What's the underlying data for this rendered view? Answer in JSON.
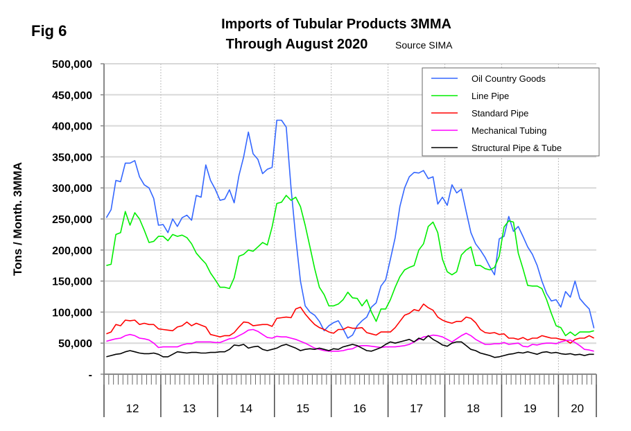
{
  "fig_label": "Fig 6",
  "chart_data": {
    "type": "line",
    "title": "Imports of Tubular Products 3MMA",
    "subtitle": "Through August 2020",
    "source": "Source SIMA",
    "xlabel": "",
    "ylabel": "Tons / Month. 3MMA",
    "ylim": [
      0,
      500000
    ],
    "yticks": [
      0,
      50000,
      100000,
      150000,
      200000,
      250000,
      300000,
      350000,
      400000,
      450000,
      500000
    ],
    "ytick_labels": [
      "-",
      "50,000",
      "100,000",
      "150,000",
      "200,000",
      "250,000",
      "300,000",
      "350,000",
      "400,000",
      "450,000",
      "500,000"
    ],
    "x_start": "2012-01",
    "x_end": "2020-08",
    "x_frequency": "monthly",
    "year_labels": [
      "12",
      "13",
      "14",
      "15",
      "16",
      "17",
      "18",
      "19",
      "20"
    ],
    "grid": {
      "horizontal": true,
      "vertical_year_dotted": true
    },
    "legend_position": "top-right",
    "series": [
      {
        "name": "Oil Country Goods",
        "color": "#3366ff",
        "values": [
          252000,
          265000,
          312000,
          310000,
          340000,
          340000,
          344000,
          318000,
          305000,
          300000,
          283000,
          240000,
          241000,
          228000,
          250000,
          238000,
          252000,
          256000,
          248000,
          288000,
          285000,
          337000,
          312000,
          298000,
          280000,
          282000,
          297000,
          276000,
          320000,
          350000,
          390000,
          355000,
          346000,
          323000,
          330000,
          333000,
          409000,
          409000,
          398000,
          300000,
          220000,
          150000,
          110000,
          100000,
          95000,
          85000,
          70000,
          78000,
          83000,
          86000,
          73000,
          58000,
          63000,
          78000,
          86000,
          92000,
          108000,
          115000,
          142000,
          152000,
          185000,
          220000,
          270000,
          300000,
          318000,
          325000,
          324000,
          328000,
          315000,
          318000,
          274000,
          285000,
          272000,
          305000,
          292000,
          298000,
          262000,
          228000,
          210000,
          200000,
          188000,
          173000,
          160000,
          218000,
          222000,
          254000,
          230000,
          238000,
          222000,
          205000,
          193000,
          175000,
          150000,
          130000,
          118000,
          120000,
          108000,
          133000,
          124000,
          150000,
          122000,
          113000,
          105000,
          74000
        ]
      },
      {
        "name": "Line Pipe",
        "color": "#00ee00",
        "values": [
          175000,
          177000,
          225000,
          228000,
          262000,
          240000,
          260000,
          250000,
          232000,
          212000,
          214000,
          222000,
          222000,
          215000,
          225000,
          222000,
          224000,
          220000,
          210000,
          195000,
          186000,
          178000,
          163000,
          152000,
          140000,
          140000,
          138000,
          155000,
          190000,
          193000,
          200000,
          198000,
          205000,
          212000,
          208000,
          237000,
          275000,
          277000,
          288000,
          280000,
          285000,
          270000,
          240000,
          205000,
          170000,
          140000,
          128000,
          110000,
          110000,
          113000,
          120000,
          132000,
          123000,
          122000,
          110000,
          120000,
          100000,
          85000,
          105000,
          105000,
          120000,
          140000,
          157000,
          168000,
          172000,
          175000,
          200000,
          210000,
          238000,
          245000,
          228000,
          185000,
          165000,
          160000,
          165000,
          192000,
          200000,
          205000,
          175000,
          175000,
          170000,
          168000,
          172000,
          190000,
          237000,
          247000,
          245000,
          195000,
          170000,
          143000,
          142000,
          142000,
          138000,
          120000,
          98000,
          78000,
          75000,
          62000,
          68000,
          62000,
          68000,
          68000,
          68000,
          70000
        ]
      },
      {
        "name": "Standard Pipe",
        "color": "#ff0000",
        "values": [
          65000,
          68000,
          80000,
          78000,
          87000,
          86000,
          87000,
          80000,
          82000,
          80000,
          80000,
          73000,
          72000,
          71000,
          70000,
          76000,
          78000,
          84000,
          78000,
          82000,
          79000,
          76000,
          64000,
          62000,
          60000,
          62000,
          62000,
          67000,
          76000,
          84000,
          83000,
          78000,
          79000,
          80000,
          80000,
          77000,
          90000,
          91000,
          92000,
          91000,
          105000,
          108000,
          97000,
          88000,
          80000,
          75000,
          72000,
          68000,
          66000,
          72000,
          72000,
          76000,
          74000,
          74000,
          75000,
          67000,
          65000,
          63000,
          68000,
          68000,
          68000,
          75000,
          85000,
          95000,
          98000,
          104000,
          102000,
          113000,
          107000,
          103000,
          92000,
          87000,
          84000,
          82000,
          85000,
          85000,
          92000,
          90000,
          83000,
          72000,
          67000,
          66000,
          67000,
          64000,
          65000,
          58000,
          58000,
          56000,
          59000,
          55000,
          58000,
          58000,
          62000,
          60000,
          58000,
          58000,
          56000,
          55000,
          50000,
          56000,
          58000,
          58000,
          62000,
          58000
        ]
      },
      {
        "name": "Mechanical Tubing",
        "color": "#ff00ff",
        "values": [
          53000,
          55000,
          57000,
          58000,
          62000,
          64000,
          62000,
          58000,
          57000,
          55000,
          50000,
          43000,
          44000,
          44000,
          44000,
          44000,
          47000,
          49000,
          49000,
          52000,
          52000,
          52000,
          52000,
          51000,
          51000,
          54000,
          57000,
          58000,
          62000,
          66000,
          71000,
          72000,
          69000,
          64000,
          59000,
          58000,
          61000,
          60000,
          60000,
          58000,
          56000,
          53000,
          50000,
          46000,
          42000,
          40000,
          38000,
          37000,
          37000,
          37000,
          38000,
          40000,
          41000,
          45000,
          46000,
          46000,
          45000,
          44000,
          43000,
          44000,
          44000,
          44000,
          45000,
          46000,
          48000,
          52000,
          56000,
          60000,
          61000,
          63000,
          62000,
          60000,
          56000,
          52000,
          57000,
          62000,
          66000,
          62000,
          56000,
          52000,
          48000,
          48000,
          49000,
          49000,
          51000,
          48000,
          49000,
          50000,
          45000,
          44000,
          48000,
          47000,
          49000,
          50000,
          50000,
          49000,
          52000,
          54000,
          55000,
          51000,
          46000,
          40000,
          39000,
          37000
        ]
      },
      {
        "name": "Structural Pipe & Tube",
        "color": "#000000",
        "values": [
          28000,
          30000,
          32000,
          33000,
          36000,
          38000,
          36000,
          34000,
          33000,
          33000,
          34000,
          32000,
          28000,
          28000,
          32000,
          36000,
          35000,
          34000,
          35000,
          35000,
          34000,
          34000,
          35000,
          35000,
          36000,
          36000,
          40000,
          47000,
          46000,
          48000,
          42000,
          44000,
          45000,
          40000,
          38000,
          40000,
          42000,
          46000,
          48000,
          45000,
          42000,
          38000,
          40000,
          41000,
          40000,
          42000,
          40000,
          38000,
          41000,
          40000,
          44000,
          46000,
          48000,
          46000,
          42000,
          38000,
          37000,
          40000,
          43000,
          48000,
          52000,
          50000,
          52000,
          54000,
          56000,
          52000,
          58000,
          55000,
          62000,
          56000,
          52000,
          47000,
          45000,
          50000,
          52000,
          52000,
          46000,
          40000,
          38000,
          34000,
          32000,
          30000,
          27000,
          28000,
          30000,
          32000,
          33000,
          35000,
          34000,
          36000,
          34000,
          32000,
          35000,
          36000,
          34000,
          35000,
          33000,
          32000,
          33000,
          31000,
          32000,
          30000,
          32000,
          32000
        ]
      }
    ]
  }
}
